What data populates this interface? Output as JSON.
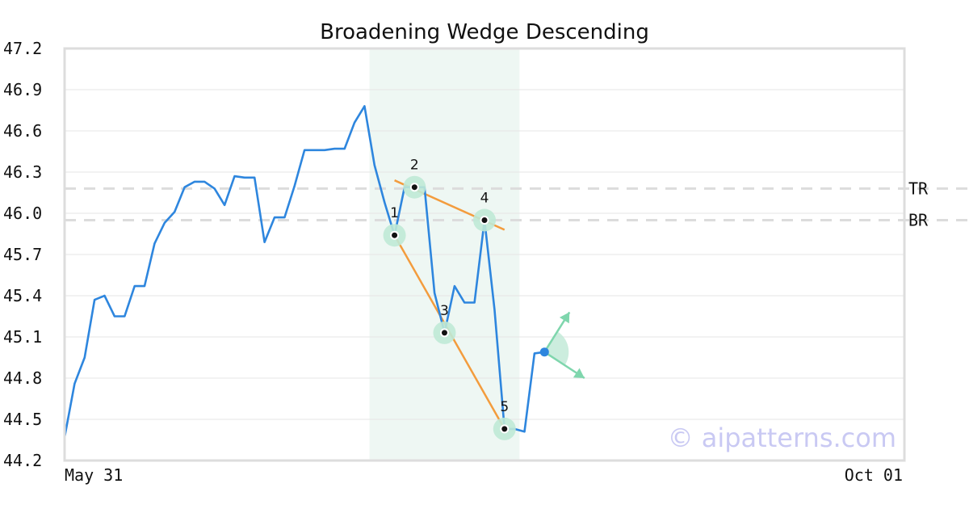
{
  "chart_data": {
    "type": "line",
    "title": "Broadening Wedge Descending",
    "xlabel": "",
    "ylabel": "",
    "ylim": [
      44.2,
      47.2
    ],
    "y_ticks": [
      "47.2",
      "46.9",
      "46.6",
      "46.3",
      "46.0",
      "45.7",
      "45.4",
      "45.1",
      "44.8",
      "44.5",
      "44.2"
    ],
    "x_ticks": [
      "May 31",
      "Oct 01"
    ],
    "grid": true,
    "series": [
      {
        "name": "",
        "color": "#2e86de",
        "x": [
          0,
          1,
          2,
          3,
          4,
          5,
          6,
          7,
          8,
          9,
          10,
          11,
          12,
          13,
          14,
          15,
          16,
          17,
          18,
          19,
          20,
          21,
          22,
          23,
          24,
          25,
          26,
          27,
          28,
          29,
          30,
          31,
          32,
          33,
          34,
          35,
          36,
          37,
          38,
          39,
          40,
          41,
          42,
          43,
          44,
          45,
          46,
          47,
          48,
          49,
          50,
          51,
          52,
          53,
          54,
          55,
          56,
          57,
          58,
          59,
          60,
          61,
          62,
          63,
          64,
          65,
          66,
          67,
          68,
          69,
          70,
          71,
          72,
          73,
          74,
          75,
          76,
          77,
          78,
          79,
          80,
          81,
          82,
          83,
          84
        ],
        "values": [
          44.37,
          44.76,
          44.95,
          45.37,
          45.4,
          45.25,
          45.25,
          45.47,
          45.47,
          45.78,
          45.93,
          46.01,
          46.19,
          46.23,
          46.23,
          46.18,
          46.06,
          46.27,
          46.26,
          46.26,
          45.79,
          45.97,
          45.97,
          46.2,
          46.46,
          46.46,
          46.46,
          46.47,
          46.47,
          46.66,
          46.78,
          46.35,
          46.08,
          45.84,
          46.19,
          46.19,
          46.19,
          45.42,
          45.13,
          45.47,
          45.35,
          45.35,
          45.95,
          45.3,
          44.43,
          44.43,
          44.41,
          44.98,
          44.99,
          null,
          null,
          null,
          null,
          null,
          null,
          null,
          null,
          null,
          null,
          null,
          null,
          null,
          null,
          null,
          null,
          null,
          null,
          null,
          null,
          null,
          null,
          null,
          null,
          null,
          null,
          null,
          null,
          null,
          null,
          null,
          null,
          null,
          null,
          null,
          null
        ]
      }
    ],
    "highlight_region": {
      "x_start": 30.5,
      "x_end": 45.5,
      "color": "#eef7f3"
    },
    "levels": [
      {
        "label": "TR",
        "value": 46.18
      },
      {
        "label": "BR",
        "value": 45.95
      }
    ],
    "pattern_points": [
      {
        "label": "1",
        "x": 33,
        "y": 45.84
      },
      {
        "label": "2",
        "x": 35,
        "y": 46.19
      },
      {
        "label": "3",
        "x": 38,
        "y": 45.13
      },
      {
        "label": "4",
        "x": 42,
        "y": 45.95
      },
      {
        "label": "5",
        "x": 44,
        "y": 44.43
      }
    ],
    "trend_lines": [
      {
        "from": [
          33,
          45.84
        ],
        "to": [
          44,
          44.43
        ],
        "color": "#f39c3d"
      },
      {
        "from": [
          33,
          46.24
        ],
        "to": [
          44,
          45.88
        ],
        "color": "#f39c3d"
      }
    ],
    "current_point": {
      "x": 48,
      "y": 44.99
    },
    "projection": {
      "up": [
        50.5,
        45.28
      ],
      "down": [
        52,
        44.8
      ],
      "color": "#7fd6ad"
    },
    "watermark": "© aipatterns.com"
  }
}
